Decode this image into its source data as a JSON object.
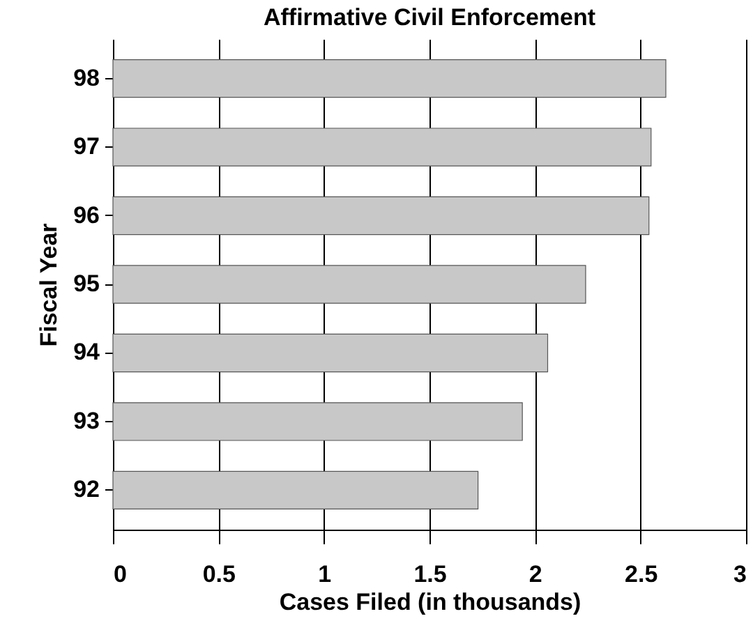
{
  "chart_data": {
    "type": "bar",
    "orientation": "horizontal",
    "title": "Affirmative Civil Enforcement",
    "xlabel": "Cases Filed (in thousands)",
    "ylabel": "Fiscal Year",
    "categories": [
      "98",
      "97",
      "96",
      "95",
      "94",
      "93",
      "92"
    ],
    "values": [
      2.62,
      2.55,
      2.54,
      2.24,
      2.06,
      1.94,
      1.73
    ],
    "color": "#c8c8c8",
    "xlim": [
      0,
      3
    ],
    "xticks": [
      0,
      0.5,
      1,
      1.5,
      2,
      2.5,
      3
    ],
    "grid": "x"
  }
}
